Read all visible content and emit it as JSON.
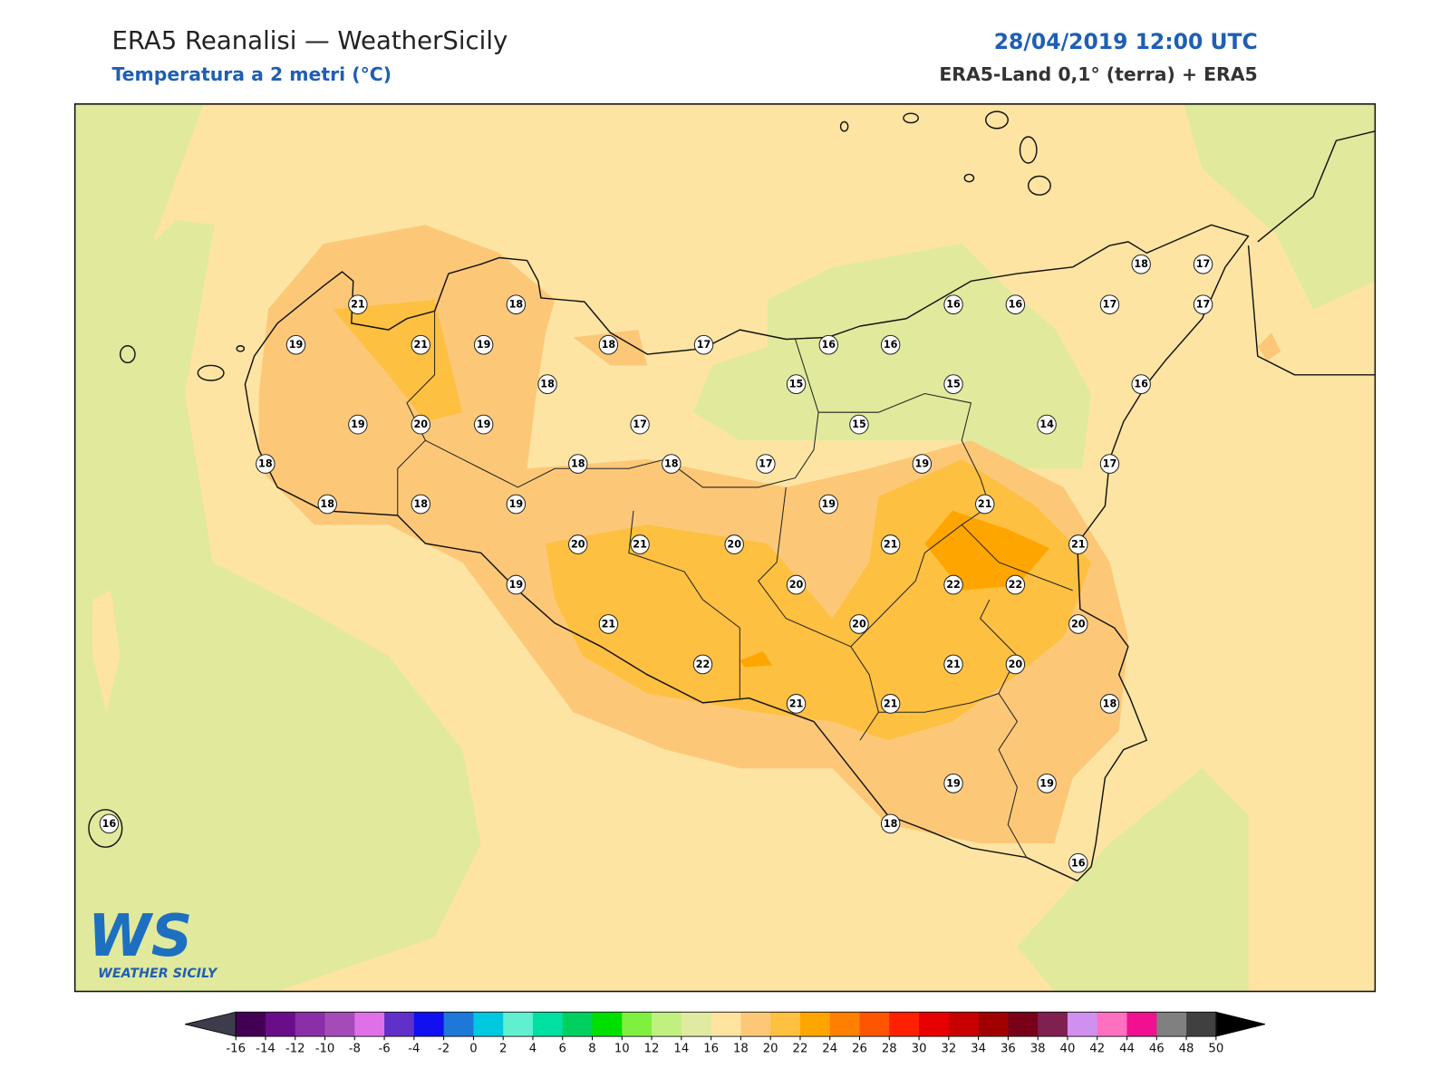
{
  "header": {
    "title": "ERA5 Reanalisi — WeatherSicily",
    "subtitle": "Temperatura a 2 metri (°C)",
    "datetime": "28/04/2019 12:00 UTC",
    "source": "ERA5-Land 0,1° (terra) + ERA5"
  },
  "stations": [
    21,
    21,
    19,
    19,
    18,
    18,
    17,
    16,
    16,
    16,
    16,
    17,
    17,
    18,
    17,
    18,
    15,
    15,
    16,
    19,
    20,
    19,
    17,
    15,
    14,
    18,
    18,
    18,
    17,
    19,
    17,
    18,
    18,
    19,
    19,
    21,
    20,
    21,
    20,
    21,
    21,
    19,
    20,
    22,
    22,
    21,
    20,
    20,
    22,
    21,
    20,
    18,
    21,
    21,
    19,
    19,
    18,
    16,
    16
  ],
  "colorbar": {
    "ticks": [
      -16,
      -14,
      -12,
      -10,
      -8,
      -6,
      -4,
      -2,
      0,
      2,
      4,
      6,
      8,
      10,
      12,
      14,
      16,
      18,
      20,
      22,
      24,
      26,
      28,
      30,
      32,
      34,
      36,
      38,
      40,
      42,
      44,
      46,
      48,
      50
    ],
    "colors": [
      "#440055",
      "#6a0d8a",
      "#8b2fa8",
      "#a54bb8",
      "#e070e8",
      "#6030c8",
      "#1010f0",
      "#1e78d8",
      "#00c8e0",
      "#60f0d0",
      "#00e0a0",
      "#00d060",
      "#00e000",
      "#80f040",
      "#c0f080",
      "#e0eaa0",
      "#ffe4a0",
      "#fcc878",
      "#fdc040",
      "#ffa500",
      "#ff8000",
      "#ff5500",
      "#ff2000",
      "#e80000",
      "#c80000",
      "#a00000",
      "#780018",
      "#802050",
      "#d090f0",
      "#ff70c0",
      "#f01090",
      "#808080",
      "#404040"
    ],
    "under_color": "#3c3c4c",
    "over_color": "#000000"
  },
  "logo": {
    "mark": "WS",
    "name": "WEATHER SICILY"
  }
}
